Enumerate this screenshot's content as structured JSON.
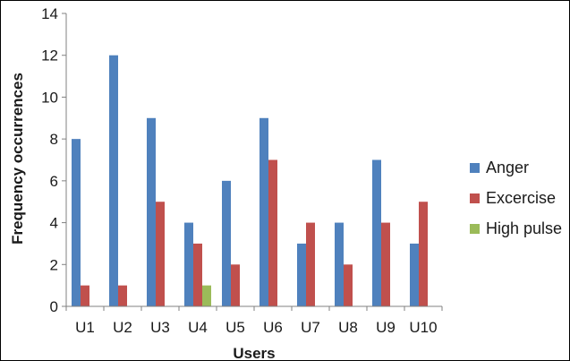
{
  "chart_data": {
    "type": "bar",
    "title": "",
    "xlabel": "Users",
    "ylabel": "Frequency occurrences",
    "categories": [
      "U1",
      "U2",
      "U3",
      "U4",
      "U5",
      "U6",
      "U7",
      "U8",
      "U9",
      "U10"
    ],
    "series": [
      {
        "name": "Anger",
        "color": "#4f81bd",
        "values": [
          8,
          12,
          9,
          4,
          6,
          9,
          3,
          4,
          7,
          3
        ]
      },
      {
        "name": "Excercise",
        "color": "#c0504d",
        "values": [
          1,
          1,
          5,
          3,
          2,
          7,
          4,
          2,
          4,
          5
        ]
      },
      {
        "name": "High pulse",
        "color": "#9bbb59",
        "values": [
          0,
          0,
          0,
          1,
          0,
          0,
          0,
          0,
          0,
          0
        ]
      }
    ],
    "ylim": [
      0,
      14
    ],
    "yticks": [
      0,
      2,
      4,
      6,
      8,
      10,
      12,
      14
    ],
    "grid": false,
    "legend_position": "right"
  }
}
